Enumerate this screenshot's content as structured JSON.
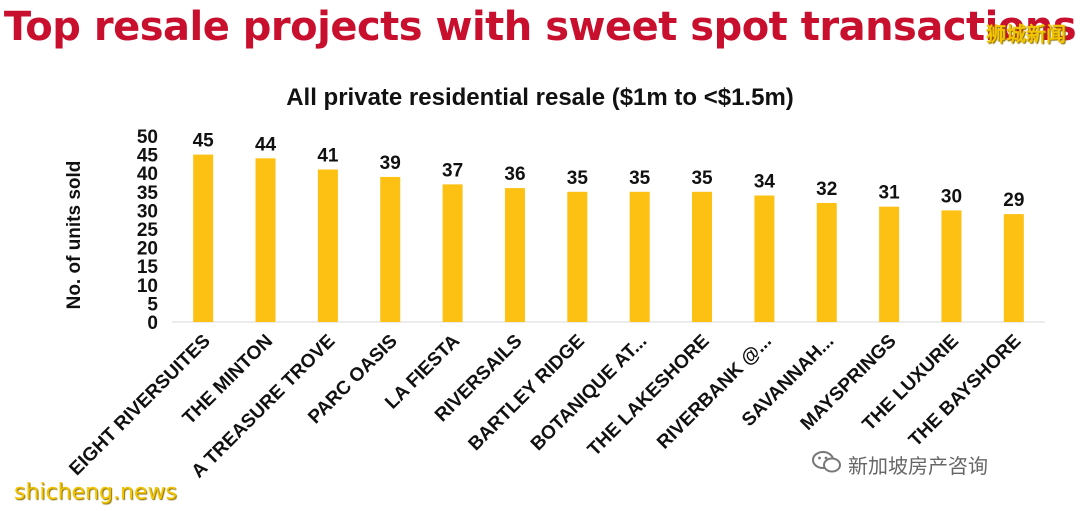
{
  "header": {
    "title": "Top resale projects with sweet spot transactions"
  },
  "watermarks": {
    "top_right": "狮城新闻",
    "bottom_left": "shicheng.news",
    "bottom_right": "新加坡房产咨询",
    "bottom_right_icon": "wechat-icon"
  },
  "colors": {
    "title": "#c8102e",
    "bar": "#fcc113"
  },
  "chart_data": {
    "type": "bar",
    "title": "All private residential resale ($1m to <$1.5m)",
    "xlabel": "",
    "ylabel": "No. of units sold",
    "ylim": [
      0,
      50
    ],
    "yticks": [
      0,
      5,
      10,
      15,
      20,
      25,
      30,
      35,
      40,
      45,
      50
    ],
    "grid": false,
    "legend": "none",
    "categories": [
      "EIGHT RIVERSUITES",
      "THE MINTON",
      "A TREASURE TROVE",
      "PARC OASIS",
      "LA FIESTA",
      "RIVERSAILS",
      "BARTLEY RIDGE",
      "BOTANIQUE AT...",
      "THE LAKESHORE",
      "RIVERBANK @...",
      "SAVANNAH...",
      "MAYSPRINGS",
      "THE LUXURIE",
      "THE BAYSHORE"
    ],
    "values": [
      45,
      44,
      41,
      39,
      37,
      36,
      35,
      35,
      35,
      34,
      32,
      31,
      30,
      29
    ]
  }
}
